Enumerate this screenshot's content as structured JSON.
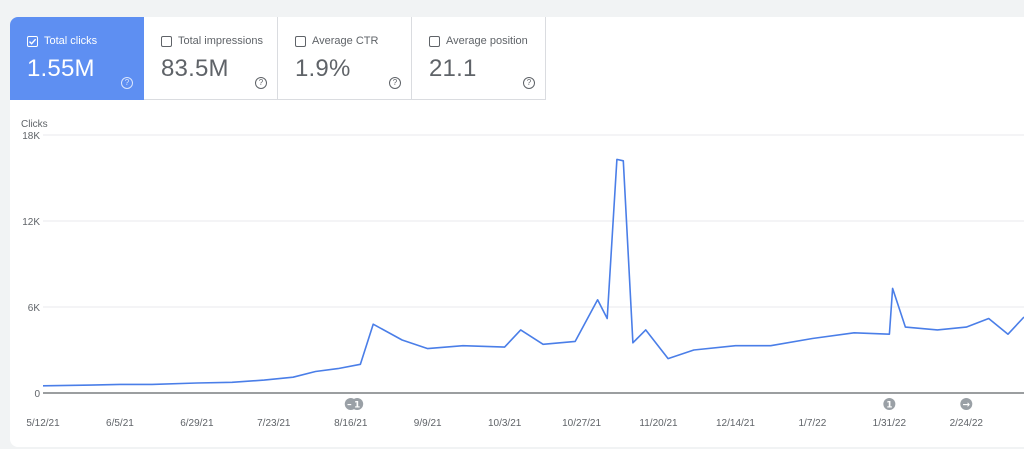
{
  "metrics": [
    {
      "label": "Total clicks",
      "value": "1.55M",
      "selected": true
    },
    {
      "label": "Total impressions",
      "value": "83.5M",
      "selected": false
    },
    {
      "label": "Average CTR",
      "value": "1.9%",
      "selected": false
    },
    {
      "label": "Average position",
      "value": "21.1",
      "selected": false
    }
  ],
  "help_glyph": "?",
  "colors": {
    "accent": "#5e8ff2",
    "line": "#4a7ee8",
    "marker": "#9aa0a6"
  },
  "chart_data": {
    "type": "line",
    "ylabel": "Clicks",
    "ylim": [
      0,
      18000
    ],
    "yticks": [
      {
        "value": 0,
        "label": "0"
      },
      {
        "value": 6000,
        "label": "6K"
      },
      {
        "value": 12000,
        "label": "12K"
      },
      {
        "value": 18000,
        "label": "18K"
      }
    ],
    "xticks": [
      "5/12/21",
      "6/5/21",
      "6/29/21",
      "7/23/21",
      "8/16/21",
      "9/9/21",
      "10/3/21",
      "10/27/21",
      "11/20/21",
      "12/14/21",
      "1/7/22",
      "1/31/22",
      "2/24/22"
    ],
    "grid": true,
    "series": [
      {
        "name": "",
        "points": [
          {
            "x": "5/12/21",
            "y": 500
          },
          {
            "x": "5/27/21",
            "y": 550
          },
          {
            "x": "6/5/21",
            "y": 600
          },
          {
            "x": "6/15/21",
            "y": 600
          },
          {
            "x": "6/29/21",
            "y": 700
          },
          {
            "x": "7/10/21",
            "y": 750
          },
          {
            "x": "7/20/21",
            "y": 900
          },
          {
            "x": "7/29/21",
            "y": 1100
          },
          {
            "x": "8/5/21",
            "y": 1500
          },
          {
            "x": "8/12/21",
            "y": 1700
          },
          {
            "x": "8/19/21",
            "y": 2000
          },
          {
            "x": "8/23/21",
            "y": 4800
          },
          {
            "x": "9/1/21",
            "y": 3700
          },
          {
            "x": "9/9/21",
            "y": 3100
          },
          {
            "x": "9/20/21",
            "y": 3300
          },
          {
            "x": "10/3/21",
            "y": 3200
          },
          {
            "x": "10/8/21",
            "y": 4400
          },
          {
            "x": "10/15/21",
            "y": 3400
          },
          {
            "x": "10/25/21",
            "y": 3600
          },
          {
            "x": "11/1/21",
            "y": 6500
          },
          {
            "x": "11/4/21",
            "y": 5200
          },
          {
            "x": "11/7/21",
            "y": 16300
          },
          {
            "x": "11/9/21",
            "y": 16200
          },
          {
            "x": "11/12/21",
            "y": 3500
          },
          {
            "x": "11/16/21",
            "y": 4400
          },
          {
            "x": "11/23/21",
            "y": 2400
          },
          {
            "x": "12/1/21",
            "y": 3000
          },
          {
            "x": "12/14/21",
            "y": 3300
          },
          {
            "x": "12/25/21",
            "y": 3300
          },
          {
            "x": "1/7/22",
            "y": 3800
          },
          {
            "x": "1/20/22",
            "y": 4200
          },
          {
            "x": "1/31/22",
            "y": 4100
          },
          {
            "x": "2/1/22",
            "y": 7300
          },
          {
            "x": "2/5/22",
            "y": 4600
          },
          {
            "x": "2/15/22",
            "y": 4400
          },
          {
            "x": "2/24/22",
            "y": 4600
          },
          {
            "x": "3/3/22",
            "y": 5200
          },
          {
            "x": "3/9/22",
            "y": 4100
          },
          {
            "x": "3/14/22",
            "y": 5300
          }
        ]
      }
    ],
    "annotations": [
      {
        "x": "8/16/21",
        "symbol": "→"
      },
      {
        "x": "8/18/21",
        "symbol": "1"
      },
      {
        "x": "1/31/22",
        "symbol": "1"
      },
      {
        "x": "2/24/22",
        "symbol": "→"
      }
    ]
  }
}
